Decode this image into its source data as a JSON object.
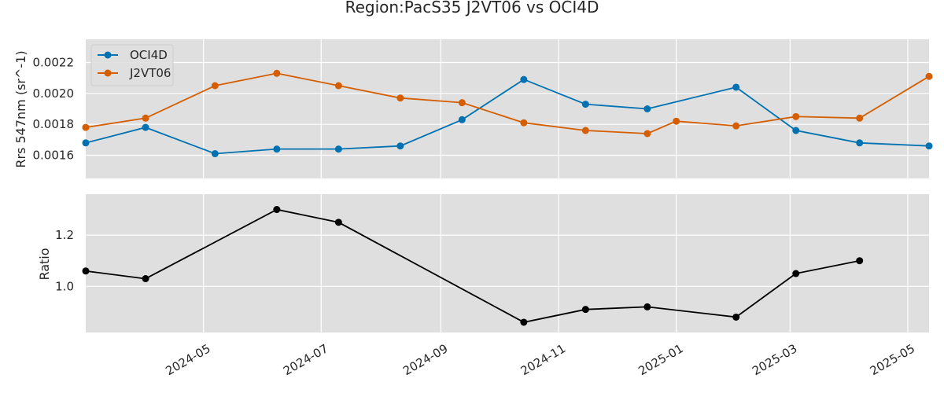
{
  "colors": {
    "oci": "#0072b2",
    "j2": "#d55e00",
    "ratio": "#000000",
    "panel_bg": "#dfdfdf",
    "grid": "#ffffff"
  },
  "chart_data": {
    "title": "Region:PacS35 J2VT06 vs OCI4D",
    "type": "line",
    "x_range": [
      "2024-03-01",
      "2025-05-12"
    ],
    "x_ticks": [
      "2024-05",
      "2024-07",
      "2024-09",
      "2024-11",
      "2025-01",
      "2025-03",
      "2025-05"
    ],
    "x_tick_dates": [
      "2024-05-01",
      "2024-07-01",
      "2024-09-01",
      "2024-11-01",
      "2025-01-01",
      "2025-03-01",
      "2025-05-01"
    ],
    "grid": true,
    "panels": [
      {
        "ylabel": "Rrs 547nm (sr^-1)",
        "ylim": [
          0.00145,
          0.00235
        ],
        "y_ticks": [
          0.0016,
          0.0018,
          0.002,
          0.0022
        ],
        "y_tick_labels": [
          "0.0016",
          "0.0018",
          "0.0020",
          "0.0022"
        ],
        "legend": {
          "position": "top-left"
        },
        "series": [
          {
            "name": "OCI4D",
            "color": "#0072b2",
            "points": [
              {
                "x": "2024-03-01",
                "y": 0.00168
              },
              {
                "x": "2024-04-01",
                "y": 0.00178
              },
              {
                "x": "2024-05-07",
                "y": 0.00161
              },
              {
                "x": "2024-06-08",
                "y": 0.00164
              },
              {
                "x": "2024-07-10",
                "y": 0.00164
              },
              {
                "x": "2024-08-11",
                "y": 0.00166
              },
              {
                "x": "2024-09-12",
                "y": 0.00183
              },
              {
                "x": "2024-10-14",
                "y": 0.00209
              },
              {
                "x": "2024-11-15",
                "y": 0.00193
              },
              {
                "x": "2024-12-17",
                "y": 0.0019
              },
              {
                "x": "2025-02-01",
                "y": 0.00204
              },
              {
                "x": "2025-03-04",
                "y": 0.00176
              },
              {
                "x": "2025-04-06",
                "y": 0.00168
              },
              {
                "x": "2025-05-12",
                "y": 0.00166
              }
            ]
          },
          {
            "name": "J2VT06",
            "color": "#d55e00",
            "points": [
              {
                "x": "2024-03-01",
                "y": 0.00178
              },
              {
                "x": "2024-04-01",
                "y": 0.00184
              },
              {
                "x": "2024-05-07",
                "y": 0.00205
              },
              {
                "x": "2024-06-08",
                "y": 0.00213
              },
              {
                "x": "2024-07-10",
                "y": 0.00205
              },
              {
                "x": "2024-08-11",
                "y": 0.00197
              },
              {
                "x": "2024-09-12",
                "y": 0.00194
              },
              {
                "x": "2024-10-14",
                "y": 0.00181
              },
              {
                "x": "2024-11-15",
                "y": 0.00176
              },
              {
                "x": "2024-12-17",
                "y": 0.00174
              },
              {
                "x": "2025-01-01",
                "y": 0.00182
              },
              {
                "x": "2025-02-01",
                "y": 0.00179
              },
              {
                "x": "2025-03-04",
                "y": 0.00185
              },
              {
                "x": "2025-04-06",
                "y": 0.00184
              },
              {
                "x": "2025-05-12",
                "y": 0.00211
              }
            ]
          }
        ]
      },
      {
        "ylabel": "Ratio",
        "ylim": [
          0.82,
          1.36
        ],
        "y_ticks": [
          1.0,
          1.2
        ],
        "y_tick_labels": [
          "1.0",
          "1.2"
        ],
        "series": [
          {
            "name": "",
            "color": "#000000",
            "points": [
              {
                "x": "2024-03-01",
                "y": 1.06
              },
              {
                "x": "2024-04-01",
                "y": 1.03
              },
              {
                "x": "2024-06-08",
                "y": 1.3
              },
              {
                "x": "2024-07-10",
                "y": 1.25
              },
              {
                "x": "2024-10-14",
                "y": 0.86
              },
              {
                "x": "2024-11-15",
                "y": 0.91
              },
              {
                "x": "2024-12-17",
                "y": 0.92
              },
              {
                "x": "2025-02-01",
                "y": 0.88
              },
              {
                "x": "2025-03-04",
                "y": 1.05
              },
              {
                "x": "2025-04-06",
                "y": 1.1
              }
            ]
          }
        ]
      }
    ]
  }
}
